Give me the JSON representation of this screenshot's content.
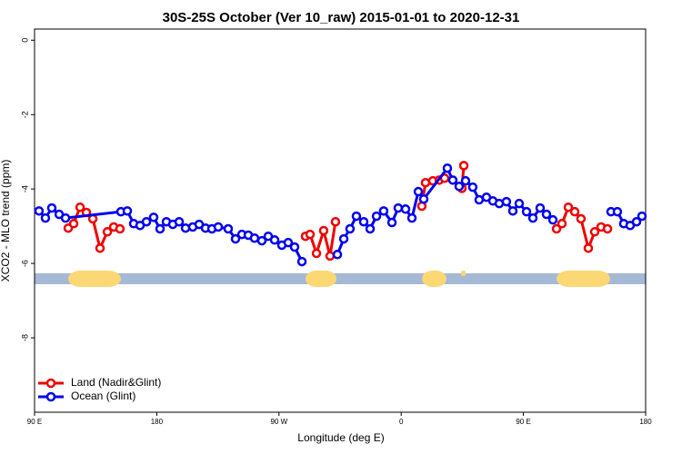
{
  "chart_data": {
    "type": "line",
    "title": "30S-25S October (Ver 10_raw)   2015-01-01 to 2020-12-31",
    "x_label": "Longitude (deg E)",
    "y_label": "XCO2 - MLO trend (ppm)",
    "xlim": [
      90,
      540
    ],
    "xticks": [
      {
        "value": 90,
        "label": "90 E"
      },
      {
        "value": 180,
        "label": "180"
      },
      {
        "value": 270,
        "label": "90 W"
      },
      {
        "value": 360,
        "label": "0"
      },
      {
        "value": 450,
        "label": "90 E"
      },
      {
        "value": 540,
        "label": "180"
      }
    ],
    "ylim": [
      -10,
      0.3
    ],
    "yticks": [
      0,
      -2,
      -4,
      -6,
      -8
    ],
    "legend": "bottom-left",
    "series": [
      {
        "name": "Land (Nadir&Glint)",
        "color": "#ee0000",
        "x": [
          114.8,
          118.8,
          123.5,
          128.2,
          132.9,
          138.2,
          143.6,
          148.3,
          152.9,
          null,
          289.5,
          292.9,
          297.6,
          302.9,
          307.6,
          311.6,
          null,
          375.2,
          377.9,
          383.3,
          388.0,
          392.0,
          null,
          404.7,
          406.1,
          null,
          474.4,
          478.4,
          483.1,
          487.8,
          492.4,
          497.8,
          502.5,
          507.2,
          511.9
        ],
        "values": [
          -5.05,
          -4.93,
          -4.49,
          -4.63,
          -4.8,
          -5.59,
          -5.15,
          -5.02,
          -5.07,
          null,
          -5.27,
          -5.22,
          -5.73,
          -5.12,
          -5.8,
          -4.88,
          null,
          -4.46,
          -3.83,
          -3.78,
          -3.76,
          -3.71,
          null,
          -3.98,
          -3.37,
          null,
          -5.07,
          -4.93,
          -4.49,
          -4.61,
          -4.8,
          -5.59,
          -5.15,
          -5.02,
          -5.07
        ]
      },
      {
        "name": "Ocean (Glint)",
        "color": "#0000ee",
        "x": [
          93.3,
          98.0,
          102.7,
          108.1,
          112.8,
          153.6,
          158.3,
          163.0,
          167.7,
          172.4,
          177.7,
          182.4,
          187.1,
          191.8,
          196.5,
          201.2,
          206.5,
          211.2,
          215.9,
          220.6,
          225.3,
          232.6,
          238.0,
          242.7,
          247.4,
          252.0,
          257.4,
          262.1,
          266.8,
          272.1,
          276.8,
          281.5,
          286.9,
          null,
          313.0,
          317.7,
          322.3,
          327.0,
          332.4,
          337.1,
          341.8,
          347.1,
          353.2,
          357.8,
          363.2,
          367.9,
          372.6,
          376.6,
          394.0,
          398.0,
          402.7,
          407.4,
          412.7,
          417.4,
          422.8,
          427.5,
          432.2,
          437.5,
          442.2,
          446.9,
          452.3,
          457.0,
          462.3,
          467.0,
          471.7,
          null,
          514.5,
          519.2,
          523.9,
          528.6,
          533.3,
          537.3
        ],
        "values": [
          -4.59,
          -4.78,
          -4.51,
          -4.68,
          -4.78,
          -4.61,
          -4.59,
          -4.93,
          -4.98,
          -4.88,
          -4.76,
          -5.07,
          -4.88,
          -4.95,
          -4.88,
          -5.05,
          -5.02,
          -4.95,
          -5.05,
          -5.07,
          -5.02,
          -5.07,
          -5.34,
          -5.22,
          -5.24,
          -5.32,
          -5.39,
          -5.27,
          -5.37,
          -5.51,
          -5.44,
          -5.56,
          -5.95,
          null,
          -5.76,
          -5.34,
          -5.07,
          -4.73,
          -4.88,
          -5.07,
          -4.73,
          -4.59,
          -4.9,
          -4.51,
          -4.54,
          -4.78,
          -4.07,
          -4.27,
          -3.44,
          -3.76,
          -3.93,
          -3.78,
          -3.95,
          -4.29,
          -4.22,
          -4.32,
          -4.39,
          -4.34,
          -4.59,
          -4.39,
          -4.61,
          -4.78,
          -4.51,
          -4.68,
          -4.83,
          null,
          -4.61,
          -4.61,
          -4.93,
          -4.98,
          -4.88,
          -4.73
        ]
      }
    ]
  }
}
